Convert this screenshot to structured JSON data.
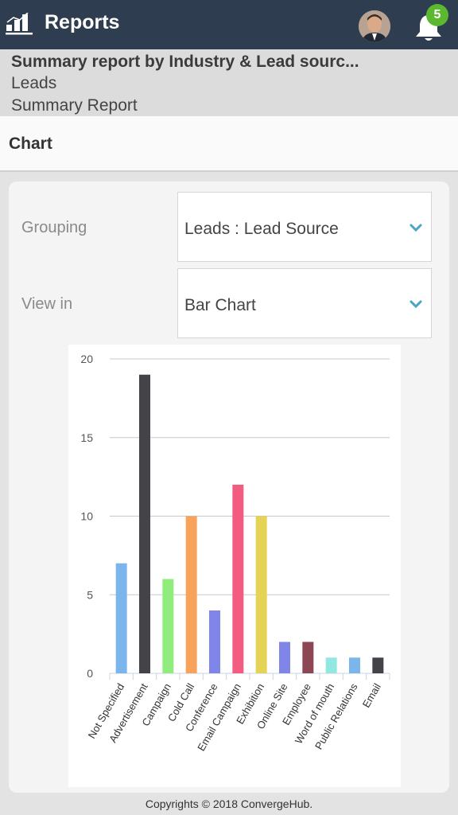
{
  "header": {
    "title": "Reports",
    "notification_count": "5"
  },
  "report": {
    "title": "Summary report by Industry & Lead sourc...",
    "module": "Leads",
    "type": "Summary Report"
  },
  "section": {
    "label": "Chart"
  },
  "controls": {
    "grouping_label": "Grouping",
    "grouping_value": "Leads : Lead Source",
    "view_label": "View in",
    "view_value": "Bar Chart"
  },
  "chart_data": {
    "type": "bar",
    "categories": [
      "Not Specified",
      "Advertisement",
      "Campaign",
      "Cold Call",
      "Conference",
      "Email Campaign",
      "Exhibition",
      "Online Site",
      "Employee",
      "Word of mouth",
      "Public Relations",
      "Email"
    ],
    "values": [
      7,
      19,
      6,
      10,
      4,
      12,
      10,
      2,
      2,
      1,
      1,
      1
    ],
    "colors": [
      "#7cb5ec",
      "#434348",
      "#90ed7d",
      "#f7a35c",
      "#8085e9",
      "#f15c80",
      "#e4d354",
      "#8085e8",
      "#8d4653",
      "#91e8e1",
      "#7cb5ec",
      "#434348"
    ],
    "yticks": [
      0,
      5,
      10,
      15,
      20
    ],
    "ylim": [
      0,
      20
    ],
    "grid": true
  },
  "footer": {
    "text": "Copyrights © 2018 ConvergeHub."
  },
  "colors": {
    "topbar": "#2e3e50",
    "badge": "#5cb82f",
    "chevron": "#4aa3c8"
  },
  "icons": {
    "logo": "bar-chart-logo-icon",
    "notifications": "bell-icon",
    "dropdown": "chevron-down-icon"
  }
}
